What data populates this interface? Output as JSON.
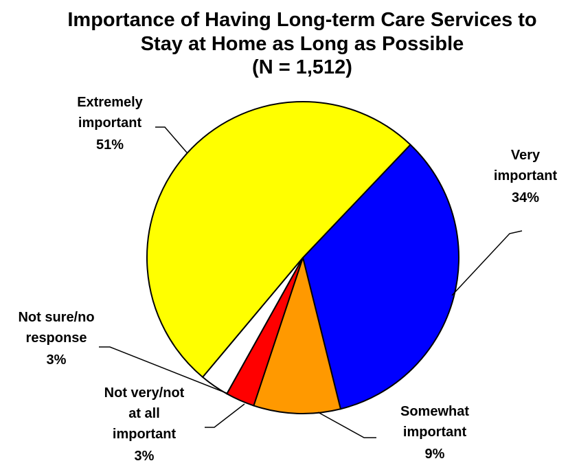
{
  "chart_data": {
    "type": "pie",
    "title": [
      "Importance of Having Long-term Care Services to",
      "Stay at Home as Long as Possible"
    ],
    "subtitle": "(N = 1,512)",
    "categories": [
      "Very\nimportant",
      "Somewhat\nimportant",
      "Not very/not\nat all\nimportant",
      "Not sure/no\nresponse",
      "Extremely\nimportant"
    ],
    "values": [
      34,
      9,
      3,
      3,
      51
    ],
    "value_labels": [
      "34%",
      "9%",
      "3%",
      "3%",
      "51%"
    ],
    "colors": [
      "#0000ff",
      "#ff9900",
      "#ff0000",
      "#ffffff",
      "#ffff00"
    ]
  }
}
